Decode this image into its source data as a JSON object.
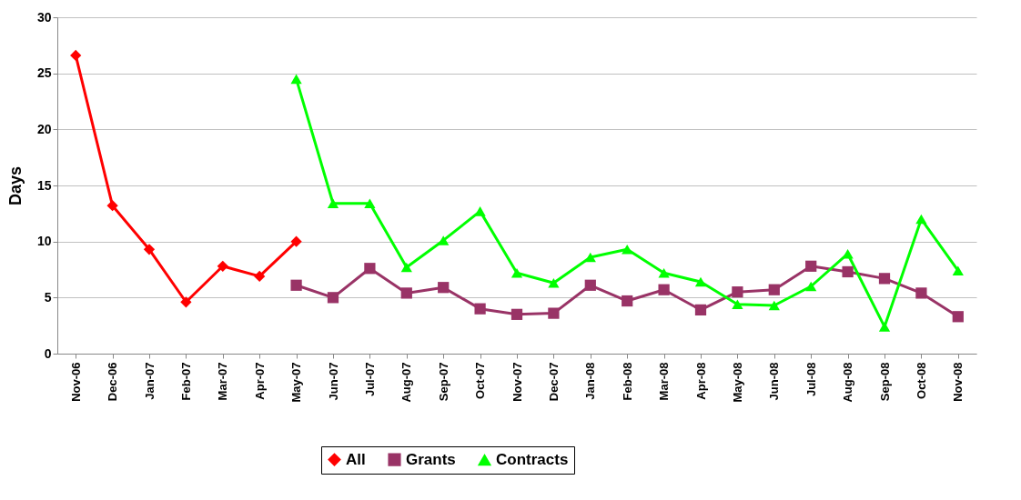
{
  "chart_data": {
    "type": "line",
    "ylabel": "Days",
    "categories": [
      "Nov-06",
      "Dec-06",
      "Jan-07",
      "Feb-07",
      "Mar-07",
      "Apr-07",
      "May-07",
      "Jun-07",
      "Jul-07",
      "Aug-07",
      "Sep-07",
      "Oct-07",
      "Nov-07",
      "Dec-07",
      "Jan-08",
      "Feb-08",
      "Mar-08",
      "Apr-08",
      "May-08",
      "Jun-08",
      "Jul-08",
      "Aug-08",
      "Sep-08",
      "Oct-08",
      "Nov-08"
    ],
    "series": [
      {
        "name": "All",
        "color": "#ff0000",
        "marker": "diamond",
        "values": [
          26.6,
          13.2,
          9.3,
          4.6,
          7.8,
          6.9,
          10.0,
          null,
          null,
          null,
          null,
          null,
          null,
          null,
          null,
          null,
          null,
          null,
          null,
          null,
          null,
          null,
          null,
          null,
          null
        ]
      },
      {
        "name": "Grants",
        "color": "#993366",
        "marker": "square",
        "values": [
          null,
          null,
          null,
          null,
          null,
          null,
          6.1,
          5.0,
          7.6,
          5.4,
          5.9,
          4.0,
          3.5,
          3.6,
          6.1,
          4.7,
          5.7,
          3.9,
          5.5,
          5.7,
          7.8,
          7.3,
          6.7,
          5.4,
          3.3
        ]
      },
      {
        "name": "Contracts",
        "color": "#00ff00",
        "marker": "triangle",
        "values": [
          null,
          null,
          null,
          null,
          null,
          null,
          24.5,
          13.4,
          13.4,
          7.7,
          10.1,
          12.7,
          7.2,
          6.3,
          8.6,
          9.3,
          7.2,
          6.4,
          4.4,
          4.3,
          6.0,
          8.9,
          2.4,
          12.0,
          7.4
        ]
      }
    ],
    "ylim": [
      0,
      30
    ],
    "yticks": [
      0,
      5,
      10,
      15,
      20,
      25,
      30
    ],
    "grid": "y",
    "legend": "bottom"
  }
}
